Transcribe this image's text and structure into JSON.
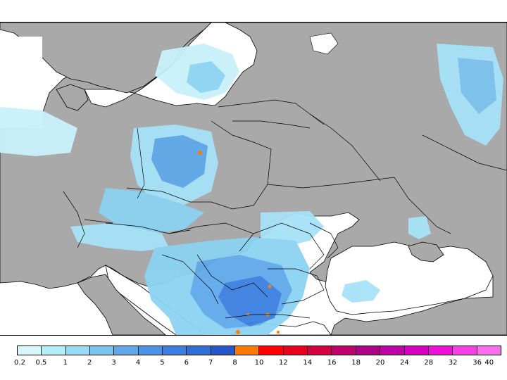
{
  "map": {
    "land_color": "#a9a9a9",
    "sea_color": "#ffffff",
    "border_color": "#000000"
  },
  "legend": {
    "labels": [
      "0.2",
      "0.5",
      "1",
      "2",
      "3",
      "4",
      "5",
      "6",
      "7",
      "8",
      "10",
      "12",
      "14",
      "16",
      "18",
      "20",
      "24",
      "28",
      "32",
      "36",
      "40"
    ],
    "colors": [
      "#d8f7fb",
      "#b2eefa",
      "#97dcf5",
      "#7ac4ef",
      "#5fa9ea",
      "#4a93e6",
      "#3a7fe0",
      "#2e6ed6",
      "#2458c8",
      "#ff7a00",
      "#ff0000",
      "#e6001e",
      "#d20040",
      "#c0006a",
      "#b0008a",
      "#c000a8",
      "#d800c0",
      "#ee10d8",
      "#f83ee6",
      "#fb6ef0"
    ]
  }
}
